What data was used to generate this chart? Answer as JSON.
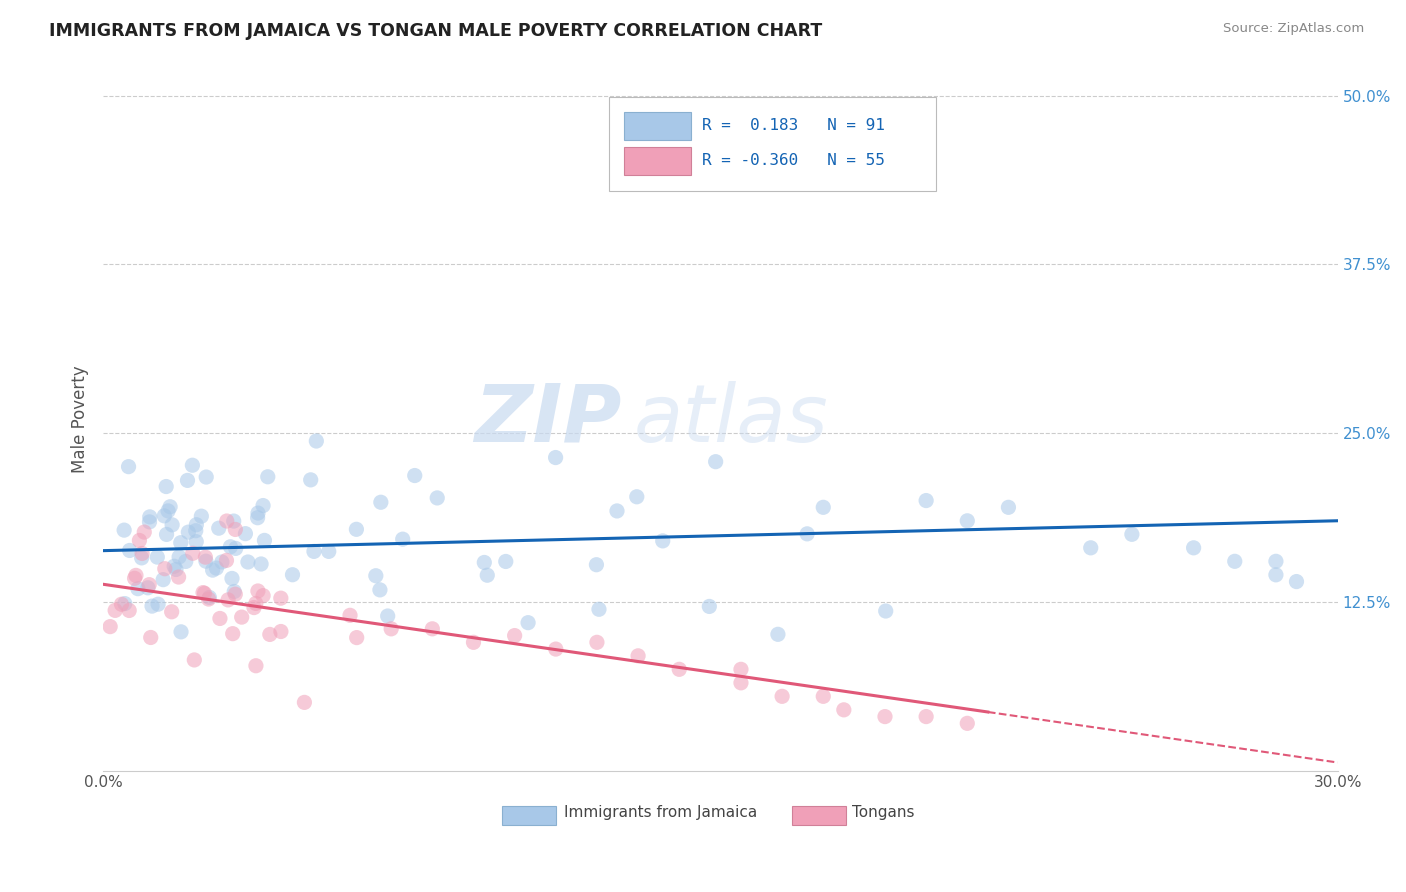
{
  "title": "IMMIGRANTS FROM JAMAICA VS TONGAN MALE POVERTY CORRELATION CHART",
  "source": "Source: ZipAtlas.com",
  "ylabel": "Male Poverty",
  "xlim": [
    0.0,
    0.3
  ],
  "ylim": [
    0.0,
    0.52
  ],
  "xticks": [
    0.0,
    0.05,
    0.1,
    0.15,
    0.2,
    0.25,
    0.3
  ],
  "xticklabels": [
    "0.0%",
    "",
    "",
    "",
    "",
    "",
    "30.0%"
  ],
  "yticks": [
    0.0,
    0.125,
    0.25,
    0.375,
    0.5
  ],
  "yticklabels": [
    "",
    "12.5%",
    "25.0%",
    "37.5%",
    "50.0%"
  ],
  "watermark_zip": "ZIP",
  "watermark_atlas": "atlas",
  "blue_scatter_color": "#a8c8e8",
  "pink_scatter_color": "#f0a0b8",
  "blue_line_color": "#1464b4",
  "pink_line_color": "#e05878",
  "grid_color": "#cccccc",
  "background_color": "#ffffff",
  "blue_r": 0.183,
  "pink_r": -0.36,
  "blue_n": 91,
  "pink_n": 55,
  "legend_r1": "R =  0.183   N = 91",
  "legend_r2": "R = -0.360   N = 55",
  "legend_text_color": "#1464b4",
  "ytick_color": "#4090d0",
  "scatter_size": 120,
  "scatter_alpha": 0.55
}
